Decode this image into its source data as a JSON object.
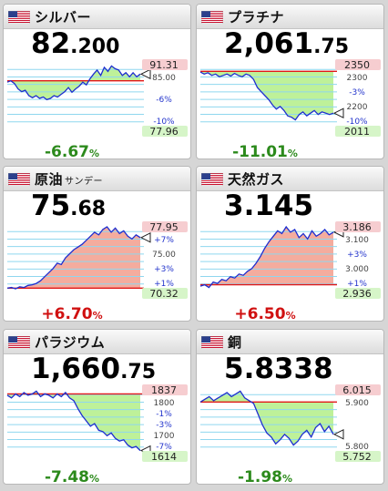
{
  "colors": {
    "price_up": "#d01010",
    "price_down": "#2c8a1c",
    "area_red": "#f3a393",
    "area_green": "#b7f08e",
    "line": "#1d2ed0",
    "grid": "#8fd7ef",
    "mark": "#e11717"
  },
  "cards": [
    {
      "name": "シルバー",
      "sub": "",
      "price_int": "82",
      "price_dec": ".200",
      "change": "-6.67",
      "pct": "%",
      "dir": "down",
      "top_label": "91.31",
      "bottom_label": "77.96",
      "side_labels": [
        "85.00",
        "-6%",
        "-10%"
      ],
      "flag_icon": "us-flag-icon"
    },
    {
      "name": "プラチナ",
      "sub": "",
      "price_int": "2,061",
      "price_dec": ".75",
      "change": "-11.01",
      "pct": "%",
      "dir": "down",
      "top_label": "2350",
      "bottom_label": "2011",
      "side_labels": [
        "2300",
        "-3%",
        "2200",
        "-10%"
      ],
      "flag_icon": "us-flag-icon"
    },
    {
      "name": "原油",
      "sub": "サンデー",
      "price_int": "75",
      "price_dec": ".68",
      "change": "+6.70",
      "pct": "%",
      "dir": "up",
      "top_label": "77.95",
      "bottom_label": "70.32",
      "side_labels": [
        "+7%",
        "75.00",
        "+3%",
        "+1%"
      ],
      "flag_icon": "us-flag-icon"
    },
    {
      "name": "天然ガス",
      "sub": "",
      "price_int": "3.145",
      "price_dec": "",
      "change": "+6.50",
      "pct": "%",
      "dir": "up",
      "top_label": "3.186",
      "bottom_label": "2.936",
      "side_labels": [
        "3.100",
        "+3%",
        "3.000",
        "+1%"
      ],
      "flag_icon": "us-flag-icon"
    },
    {
      "name": "パラジウム",
      "sub": "",
      "price_int": "1,660",
      "price_dec": ".75",
      "change": "-7.48",
      "pct": "%",
      "dir": "down",
      "top_label": "1837",
      "bottom_label": "1614",
      "side_labels": [
        "1800",
        "-1%",
        "-3%",
        "1700",
        "-7%"
      ],
      "flag_icon": "us-flag-icon"
    },
    {
      "name": "銅",
      "sub": "",
      "price_int": "5.8338",
      "price_dec": "",
      "change": "-1.98",
      "pct": "%",
      "dir": "down",
      "top_label": "6.015",
      "bottom_label": "5.752",
      "side_labels": [
        "5.900",
        "5.800"
      ],
      "flag_icon": "us-flag-icon"
    }
  ]
}
